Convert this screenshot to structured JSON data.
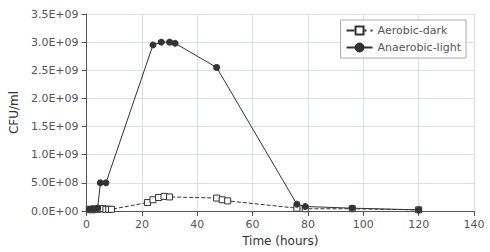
{
  "chart_data": {
    "type": "line",
    "xlabel": "Time (hours)",
    "ylabel": "CFU/ml",
    "xlim": [
      0,
      140
    ],
    "xticks": [
      0,
      20,
      40,
      60,
      80,
      100,
      120,
      140
    ],
    "ylim": [
      0,
      3500000000
    ],
    "yticks": [
      {
        "value": 0,
        "label": "0.0E+00"
      },
      {
        "value": 500000000,
        "label": "5.0E+08"
      },
      {
        "value": 1000000000,
        "label": "1.0E+09"
      },
      {
        "value": 1500000000,
        "label": "1.5E+09"
      },
      {
        "value": 2000000000,
        "label": "2.0E+09"
      },
      {
        "value": 2500000000,
        "label": "2.5E+09"
      },
      {
        "value": 3000000000,
        "label": "3.0E+09"
      },
      {
        "value": 3500000000,
        "label": "3.5E+09"
      }
    ],
    "grid": true,
    "legend": "upper right",
    "series": [
      {
        "name": "Aerobic-dark",
        "color": "#333333",
        "marker": "square_open",
        "line_style": "dashed",
        "x": [
          1,
          2,
          3,
          4,
          5,
          6,
          7,
          8,
          9,
          22,
          24,
          26,
          28,
          30,
          47,
          49,
          51,
          76,
          79,
          96,
          120
        ],
        "values": [
          30000000,
          20000000,
          30000000,
          30000000,
          40000000,
          40000000,
          30000000,
          30000000,
          30000000,
          150000000,
          200000000,
          240000000,
          260000000,
          250000000,
          230000000,
          200000000,
          180000000,
          50000000,
          40000000,
          40000000,
          20000000
        ],
        "error": [
          10000000,
          10000000,
          10000000,
          10000000,
          10000000,
          10000000,
          10000000,
          10000000,
          10000000,
          20000000,
          20000000,
          20000000,
          20000000,
          20000000,
          20000000,
          20000000,
          20000000,
          10000000,
          10000000,
          10000000,
          10000000
        ]
      },
      {
        "name": "Anaerobic-light",
        "color": "#333333",
        "marker": "circle",
        "line_style": "solid",
        "x": [
          1,
          2,
          3,
          4,
          5,
          7,
          24,
          27,
          30,
          32,
          47,
          76,
          79,
          96,
          120
        ],
        "values": [
          30000000,
          40000000,
          40000000,
          50000000,
          500000000,
          500000000,
          2950000000,
          3000000000,
          3000000000,
          2980000000,
          2550000000,
          120000000,
          80000000,
          50000000,
          20000000
        ],
        "error": [
          10000000,
          10000000,
          10000000,
          10000000,
          30000000,
          30000000,
          30000000,
          30000000,
          30000000,
          30000000,
          40000000,
          20000000,
          10000000,
          10000000,
          10000000
        ]
      }
    ]
  }
}
